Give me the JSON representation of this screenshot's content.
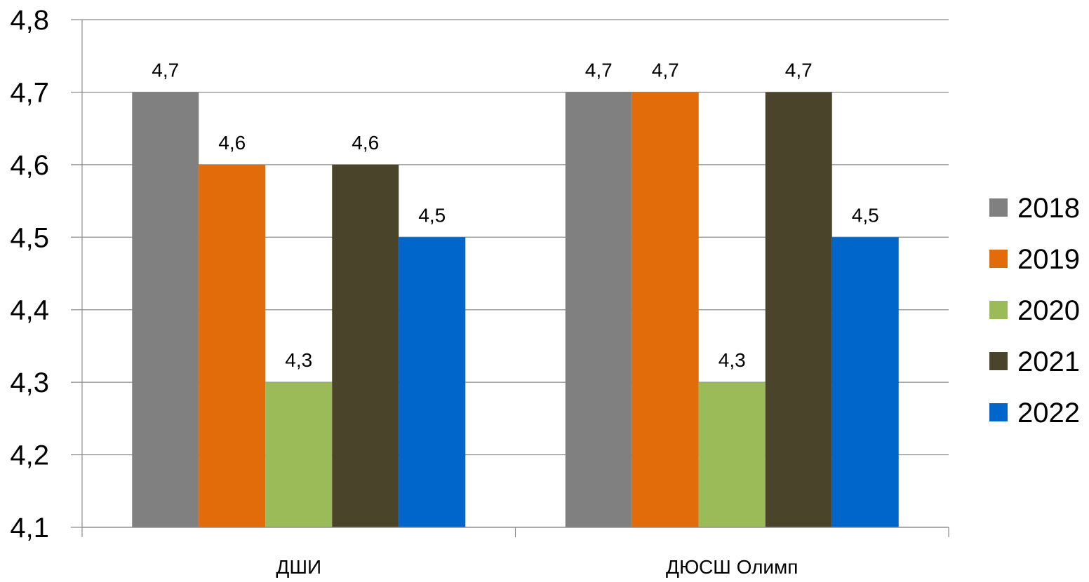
{
  "chart_data": {
    "type": "bar",
    "title": "",
    "xlabel": "",
    "ylabel": "",
    "categories": [
      "ДШИ",
      "ДЮСШ Олимп"
    ],
    "series": [
      {
        "name": "2018",
        "color": "#808080",
        "values": [
          4.7,
          4.7
        ],
        "labels": [
          "4,7",
          "4,7"
        ]
      },
      {
        "name": "2019",
        "color": "#e36c0a",
        "values": [
          4.6,
          4.7
        ],
        "labels": [
          "4,6",
          "4,7"
        ]
      },
      {
        "name": "2020",
        "color": "#9bbb59",
        "values": [
          4.3,
          4.3
        ],
        "labels": [
          "4,3",
          "4,3"
        ]
      },
      {
        "name": "2021",
        "color": "#4a452a",
        "values": [
          4.6,
          4.7
        ],
        "labels": [
          "4,6",
          "4,7"
        ]
      },
      {
        "name": "2022",
        "color": "#0066cc",
        "values": [
          4.5,
          4.5
        ],
        "labels": [
          "4,5",
          "4,5"
        ]
      }
    ],
    "ylim": [
      4.1,
      4.8
    ],
    "yticks": [
      4.1,
      4.2,
      4.3,
      4.4,
      4.5,
      4.6,
      4.7,
      4.8
    ],
    "ytick_labels": [
      "4,1",
      "4,2",
      "4,3",
      "4,4",
      "4,5",
      "4,6",
      "4,7",
      "4,8"
    ],
    "grid": true,
    "legend_position": "right"
  }
}
